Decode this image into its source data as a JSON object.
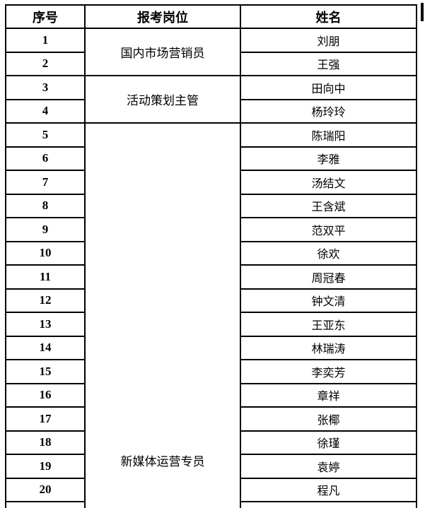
{
  "page": {
    "background_color": "#ffffff",
    "text_color": "#000000",
    "border_color": "#000000"
  },
  "table": {
    "columns": [
      "序号",
      "报考岗位",
      "姓名"
    ],
    "positions": {
      "group1": "国内市场营销员",
      "group2": "活动策划主管",
      "group3": "新媒体运营专员"
    },
    "rows": [
      {
        "no": "1",
        "name": "刘朋"
      },
      {
        "no": "2",
        "name": "王强"
      },
      {
        "no": "3",
        "name": "田向中"
      },
      {
        "no": "4",
        "name": "杨玲玲"
      },
      {
        "no": "5",
        "name": "陈瑞阳"
      },
      {
        "no": "6",
        "name": "李雅"
      },
      {
        "no": "7",
        "name": "汤结文"
      },
      {
        "no": "8",
        "name": "王含斌"
      },
      {
        "no": "9",
        "name": "范双平"
      },
      {
        "no": "10",
        "name": "徐欢"
      },
      {
        "no": "11",
        "name": "周冠春"
      },
      {
        "no": "12",
        "name": "钟文清"
      },
      {
        "no": "13",
        "name": "王亚东"
      },
      {
        "no": "14",
        "name": "林瑞涛"
      },
      {
        "no": "15",
        "name": "李奕芳"
      },
      {
        "no": "16",
        "name": "章祥"
      },
      {
        "no": "17",
        "name": "张椰"
      },
      {
        "no": "18",
        "name": "徐瑾"
      },
      {
        "no": "19",
        "name": "袁婷"
      },
      {
        "no": "20",
        "name": "程凡"
      }
    ]
  }
}
